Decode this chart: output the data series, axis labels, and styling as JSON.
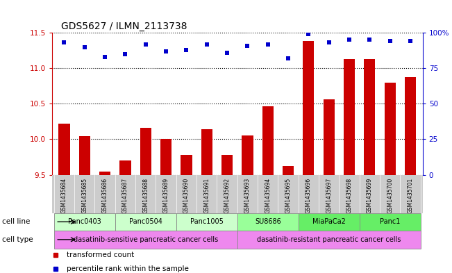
{
  "title": "GDS5627 / ILMN_2113738",
  "samples": [
    "GSM1435684",
    "GSM1435685",
    "GSM1435686",
    "GSM1435687",
    "GSM1435688",
    "GSM1435689",
    "GSM1435690",
    "GSM1435691",
    "GSM1435692",
    "GSM1435693",
    "GSM1435694",
    "GSM1435695",
    "GSM1435696",
    "GSM1435697",
    "GSM1435698",
    "GSM1435699",
    "GSM1435700",
    "GSM1435701"
  ],
  "bar_values": [
    10.22,
    10.04,
    9.54,
    9.7,
    10.16,
    10.0,
    9.78,
    10.14,
    9.78,
    10.05,
    10.46,
    9.62,
    11.38,
    10.56,
    11.13,
    11.13,
    10.8,
    10.88
  ],
  "percentile_values": [
    93,
    90,
    83,
    85,
    92,
    87,
    88,
    92,
    86,
    91,
    92,
    82,
    99,
    93,
    95,
    95,
    94,
    94
  ],
  "ylim_left": [
    9.5,
    11.5
  ],
  "ylim_right": [
    0,
    100
  ],
  "yticks_left": [
    9.5,
    10.0,
    10.5,
    11.0,
    11.5
  ],
  "yticks_right": [
    0,
    25,
    50,
    75,
    100
  ],
  "bar_color": "#cc0000",
  "dot_color": "#0000cc",
  "cell_line_groups": [
    {
      "label": "Panc0403",
      "start": 0,
      "end": 2,
      "color": "#ccffcc"
    },
    {
      "label": "Panc0504",
      "start": 3,
      "end": 5,
      "color": "#ccffcc"
    },
    {
      "label": "Panc1005",
      "start": 6,
      "end": 8,
      "color": "#ccffcc"
    },
    {
      "label": "SU8686",
      "start": 9,
      "end": 11,
      "color": "#99ff99"
    },
    {
      "label": "MiaPaCa2",
      "start": 12,
      "end": 14,
      "color": "#66ee66"
    },
    {
      "label": "Panc1",
      "start": 15,
      "end": 17,
      "color": "#66ee66"
    }
  ],
  "cell_type_groups": [
    {
      "label": "dasatinib-sensitive pancreatic cancer cells",
      "start": 0,
      "end": 8
    },
    {
      "label": "dasatinib-resistant pancreatic cancer cells",
      "start": 9,
      "end": 17
    }
  ],
  "cell_type_color": "#ee88ee",
  "sample_row_color": "#cccccc",
  "cell_line_label": "cell line",
  "cell_type_label": "cell type",
  "left_axis_color": "#cc0000",
  "right_axis_color": "#0000cc"
}
